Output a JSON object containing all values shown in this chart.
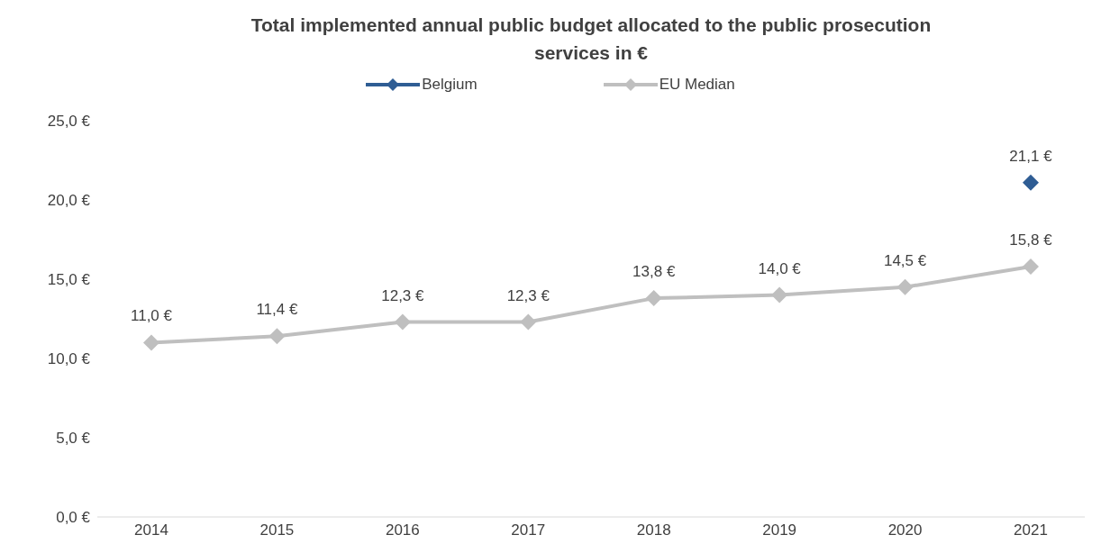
{
  "chart_data": {
    "type": "line",
    "title": "Total implemented annual public budget allocated to the public prosecution services in €",
    "categories": [
      "2014",
      "2015",
      "2016",
      "2017",
      "2018",
      "2019",
      "2020",
      "2021"
    ],
    "series": [
      {
        "name": "Belgium",
        "color": "#2f5d94",
        "values": [
          null,
          null,
          null,
          null,
          null,
          null,
          null,
          21.1
        ],
        "value_labels": [
          null,
          null,
          null,
          null,
          null,
          null,
          null,
          "21,1 €"
        ]
      },
      {
        "name": "EU Median",
        "color": "#bfbfbf",
        "values": [
          11.0,
          11.4,
          12.3,
          12.3,
          13.8,
          14.0,
          14.5,
          15.8
        ],
        "value_labels": [
          "11,0 €",
          "11,4 €",
          "12,3 €",
          "12,3 €",
          "13,8 €",
          "14,0 €",
          "14,5 €",
          "15,8 €"
        ]
      }
    ],
    "ylim": [
      0,
      25
    ],
    "yticks": [
      {
        "value": 0,
        "label": "0,0 €"
      },
      {
        "value": 5,
        "label": "5,0 €"
      },
      {
        "value": 10,
        "label": "10,0 €"
      },
      {
        "value": 15,
        "label": "15,0 €"
      },
      {
        "value": 20,
        "label": "20,0 €"
      },
      {
        "value": 25,
        "label": "25,0 €"
      }
    ],
    "legend": "top",
    "marker": "diamond",
    "line_style": "solid"
  }
}
